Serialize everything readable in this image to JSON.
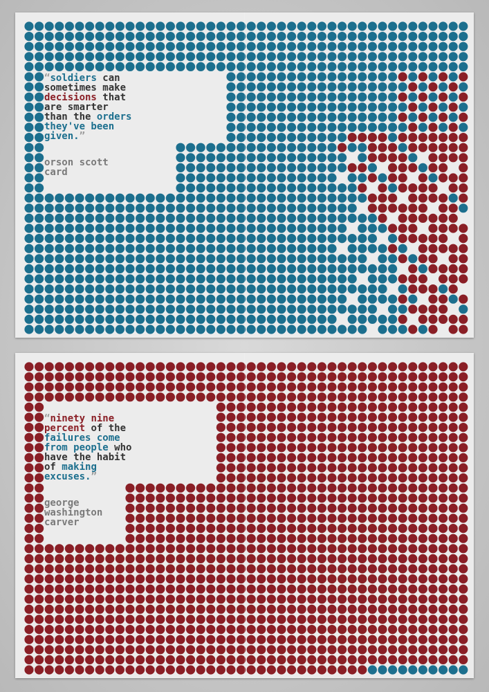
{
  "colors": {
    "blue": "#1c6f8e",
    "red": "#8a1f26",
    "dark": "#333333",
    "grey": "#7a7a7a",
    "paper": "#ececec"
  },
  "poster_top": {
    "quote_lines": [
      [
        {
          "t": "“",
          "c": "mark"
        },
        {
          "t": "soldiers ",
          "c": "blue"
        },
        {
          "t": "can",
          "c": "dark"
        }
      ],
      [
        {
          "t": "sometimes make",
          "c": "dark"
        }
      ],
      [
        {
          "t": "decisions ",
          "c": "red"
        },
        {
          "t": "that",
          "c": "dark"
        }
      ],
      [
        {
          "t": "are smarter",
          "c": "dark"
        }
      ],
      [
        {
          "t": "than the ",
          "c": "dark"
        },
        {
          "t": "orders",
          "c": "blue"
        }
      ],
      [
        {
          "t": "they've been",
          "c": "blue"
        }
      ],
      [
        {
          "t": "given.",
          "c": "blue"
        },
        {
          "t": "”",
          "c": "mark"
        }
      ]
    ],
    "author_lines": [
      "orson scott",
      "card"
    ]
  },
  "poster_bottom": {
    "quote_lines": [
      [
        {
          "t": "“",
          "c": "mark"
        },
        {
          "t": "ninety nine",
          "c": "red"
        }
      ],
      [
        {
          "t": "percent ",
          "c": "red"
        },
        {
          "t": "of the",
          "c": "dark"
        }
      ],
      [
        {
          "t": "failures come",
          "c": "blue"
        }
      ],
      [
        {
          "t": "from people ",
          "c": "blue"
        },
        {
          "t": "who",
          "c": "dark"
        }
      ],
      [
        {
          "t": "have the habit",
          "c": "dark"
        }
      ],
      [
        {
          "t": "of ",
          "c": "dark"
        },
        {
          "t": "making",
          "c": "blue"
        }
      ],
      [
        {
          "t": "excuses.",
          "c": "blue"
        },
        {
          "t": "”",
          "c": "mark"
        }
      ]
    ],
    "author_lines": [
      "george",
      "washington",
      "carver"
    ]
  }
}
